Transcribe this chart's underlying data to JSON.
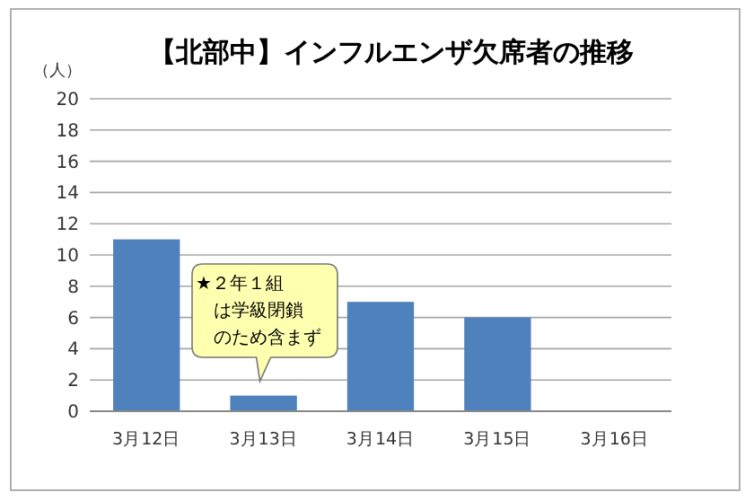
{
  "chart_data": {
    "type": "bar",
    "title": "【北部中】インフルエンザ欠席者の推移",
    "ylabel": "（人）",
    "categories": [
      "3月12日",
      "3月13日",
      "3月14日",
      "3月15日",
      "3月16日"
    ],
    "values": [
      11,
      1,
      7,
      6,
      0
    ],
    "color": "#4f81bd",
    "ylim": [
      0,
      20
    ],
    "yticks": [
      0,
      2,
      4,
      6,
      8,
      10,
      12,
      14,
      16,
      18,
      20
    ],
    "grid": "y",
    "annotations": [
      {
        "text": "★２年１組は学級閉鎖のため含まず",
        "x": "3月13日",
        "y": 1
      }
    ]
  }
}
